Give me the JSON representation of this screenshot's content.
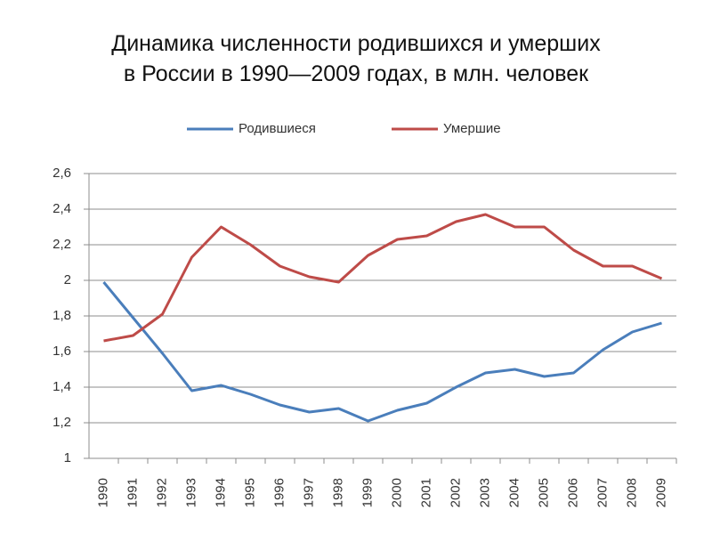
{
  "chart_data": {
    "type": "line",
    "title": [
      "Динамика численности родившихся и умерших",
      "в России в 1990—2009 годах, в млн. человек"
    ],
    "categories": [
      "1990",
      "1991",
      "1992",
      "1993",
      "1994",
      "1995",
      "1996",
      "1997",
      "1998",
      "1999",
      "2000",
      "2001",
      "2002",
      "2003",
      "2004",
      "2005",
      "2006",
      "2007",
      "2008",
      "2009"
    ],
    "series": [
      {
        "name": "Родившиеся",
        "color": "#4a7ebb",
        "values": [
          1.99,
          1.79,
          1.59,
          1.38,
          1.41,
          1.36,
          1.3,
          1.26,
          1.28,
          1.21,
          1.27,
          1.31,
          1.4,
          1.48,
          1.5,
          1.46,
          1.48,
          1.61,
          1.71,
          1.76
        ]
      },
      {
        "name": "Умершие",
        "color": "#be4b48",
        "values": [
          1.66,
          1.69,
          1.81,
          2.13,
          2.3,
          2.2,
          2.08,
          2.02,
          1.99,
          2.14,
          2.23,
          2.25,
          2.33,
          2.37,
          2.3,
          2.3,
          2.17,
          2.08,
          2.08,
          2.01
        ]
      }
    ],
    "ylim": [
      1,
      2.6
    ],
    "yticks": [
      1,
      {
        "value": 1.2,
        "label": "1,2"
      },
      {
        "value": 1.4,
        "label": "1,4"
      },
      {
        "value": 1.6,
        "label": "1,6"
      },
      {
        "value": 1.8,
        "label": "1,8"
      },
      2,
      {
        "value": 2.2,
        "label": "2,2"
      },
      {
        "value": 2.4,
        "label": "2,4"
      },
      {
        "value": 2.6,
        "label": "2,6"
      }
    ],
    "grid": true,
    "legend": "top"
  }
}
